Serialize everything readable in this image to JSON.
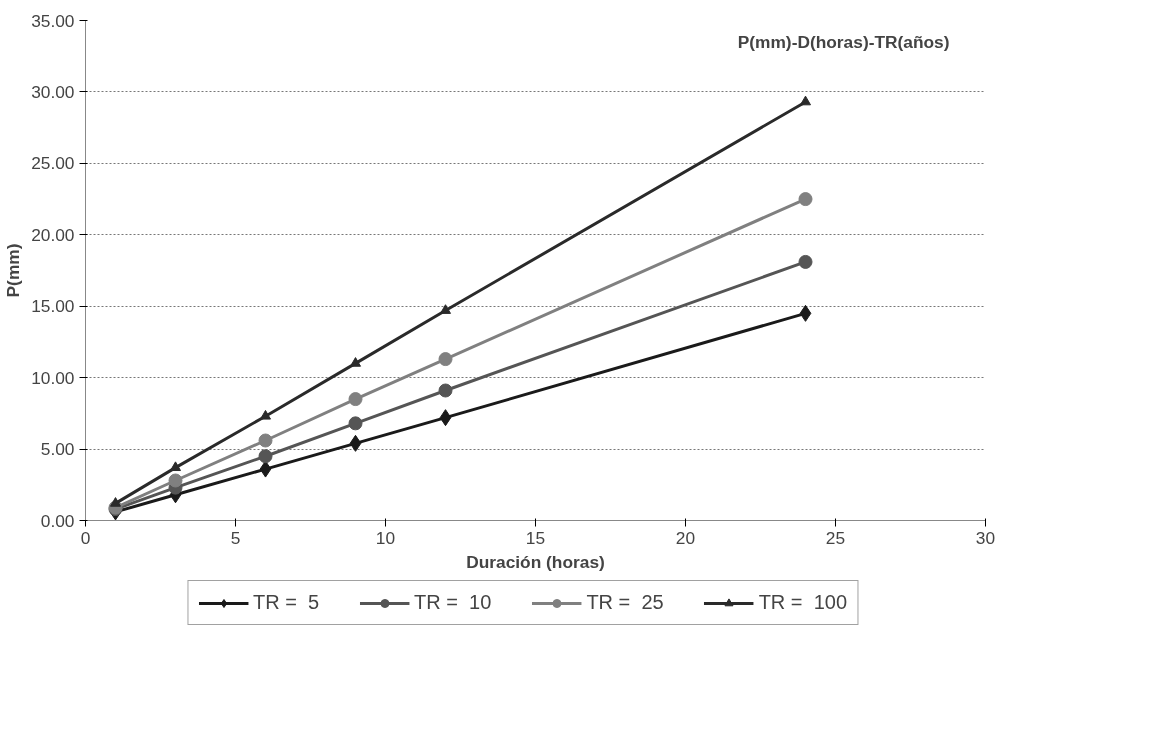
{
  "chart_data": {
    "type": "line",
    "title": "P(mm)-D(horas)-TR(años)",
    "xlabel": "Duración (horas)",
    "ylabel": "P(mm)",
    "x": [
      1,
      3,
      6,
      9,
      12,
      24
    ],
    "series": [
      {
        "name": "TR =  5",
        "color": "#1a1a1a",
        "marker": "diamond",
        "values": [
          0.6,
          1.8,
          3.6,
          5.4,
          7.2,
          14.5
        ]
      },
      {
        "name": "TR =  10",
        "color": "#555555",
        "marker": "circle",
        "values": [
          0.8,
          2.3,
          4.5,
          6.8,
          9.1,
          18.1
        ]
      },
      {
        "name": "TR =  25",
        "color": "#808080",
        "marker": "circle",
        "values": [
          0.9,
          2.8,
          5.6,
          8.5,
          11.3,
          22.5
        ]
      },
      {
        "name": "TR =  100",
        "color": "#2a2a2a",
        "marker": "triangle",
        "values": [
          1.2,
          3.7,
          7.3,
          11.0,
          14.7,
          29.3
        ]
      }
    ],
    "xlim": [
      0,
      30
    ],
    "xticks": [
      0,
      5,
      10,
      15,
      20,
      25,
      30
    ],
    "ylim": [
      0,
      35
    ],
    "yticks": [
      {
        "value": 0,
        "label": "0.00"
      },
      {
        "value": 5,
        "label": "5.00"
      },
      {
        "value": 10,
        "label": "10.00"
      },
      {
        "value": 15,
        "label": "15.00"
      },
      {
        "value": 20,
        "label": "20.00"
      },
      {
        "value": 25,
        "label": "25.00"
      },
      {
        "value": 30,
        "label": "30.00"
      },
      {
        "value": 35,
        "label": "35.00"
      }
    ],
    "grid": "y",
    "legend": "bottom",
    "line_style": "solid"
  }
}
